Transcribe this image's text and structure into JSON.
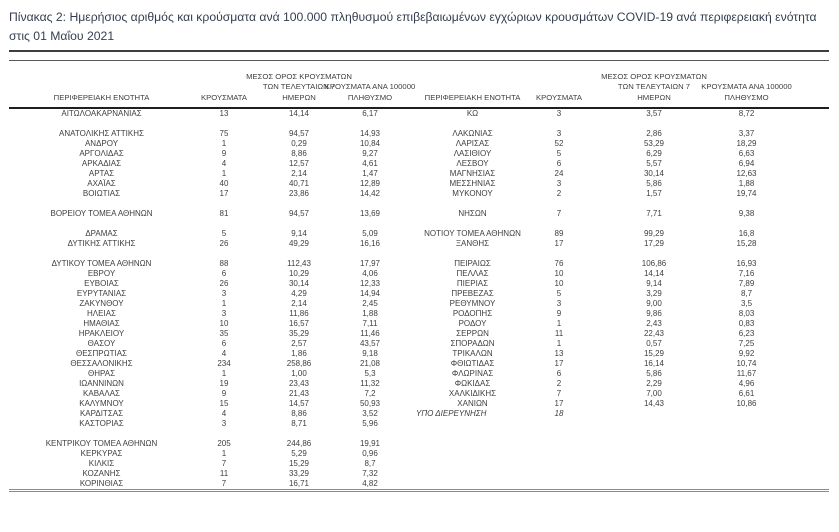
{
  "title": "Πίνακας 2:  Ημερήσιος αριθμός και κρούσματα ανά 100.000 πληθυσμού επιβεβαιωμένων εγχώριων κρουσμάτων COVID-19 ανά περιφερειακή ενότητα στις 01 Μαΐου 2021",
  "colors": {
    "title_text": "#333f50",
    "table_text": "#3f3f3f",
    "header_underline": "#1f1f1f",
    "bottom_double_line": "#8c8c8c"
  },
  "headers": {
    "region": "ΠΕΡΙΦΕΡΕΙΑΚΗ ΕΝΟΤΗΤΑ",
    "cases": "ΚΡΟΥΣΜΑΤΑ",
    "avg7": "ΜΕΣΟΣ ΟΡΟΣ ΚΡΟΥΣΜΑΤΩΝ\nΤΩΝ ΤΕΛΕΥΤΑΙΩΝ 7\nΗΜΕΡΩΝ",
    "per100k": "ΚΡΟΥΣΜΑΤΑ ΑΝΑ 100000\nΠΛΗΘΥΣΜΟ"
  },
  "table": {
    "rows": [
      {
        "l": [
          "ΑΙΤΩΛΟΑΚΑΡΝΑΝΙΑΣ",
          "13",
          "14,14",
          "6,17"
        ],
        "r": [
          "ΚΩ",
          "3",
          "3,57",
          "8,72"
        ]
      },
      {
        "blank": true
      },
      {
        "l": [
          "ΑΝΑΤΟΛΙΚΗΣ ΑΤΤΙΚΗΣ",
          "75",
          "94,57",
          "14,93"
        ],
        "r": [
          "ΛΑΚΩΝΙΑΣ",
          "3",
          "2,86",
          "3,37"
        ]
      },
      {
        "l": [
          "ΑΝΔΡΟΥ",
          "1",
          "0,29",
          "10,84"
        ],
        "r": [
          "ΛΑΡΙΣΑΣ",
          "52",
          "53,29",
          "18,29"
        ]
      },
      {
        "l": [
          "ΑΡΓΟΛΙΔΑΣ",
          "9",
          "8,86",
          "9,27"
        ],
        "r": [
          "ΛΑΣΙΘΙΟΥ",
          "5",
          "6,29",
          "6,63"
        ]
      },
      {
        "l": [
          "ΑΡΚΑΔΙΑΣ",
          "4",
          "12,57",
          "4,61"
        ],
        "r": [
          "ΛΕΣΒΟΥ",
          "6",
          "5,57",
          "6,94"
        ]
      },
      {
        "l": [
          "ΑΡΤΑΣ",
          "1",
          "2,14",
          "1,47"
        ],
        "r": [
          "ΜΑΓΝΗΣΙΑΣ",
          "24",
          "30,14",
          "12,63"
        ]
      },
      {
        "l": [
          "ΑΧΑΪΑΣ",
          "40",
          "40,71",
          "12,89"
        ],
        "r": [
          "ΜΕΣΣΗΝΙΑΣ",
          "3",
          "5,86",
          "1,88"
        ]
      },
      {
        "l": [
          "ΒΟΙΩΤΙΑΣ",
          "17",
          "23,86",
          "14,42"
        ],
        "r": [
          "ΜΥΚΟΝΟΥ",
          "2",
          "1,57",
          "19,74"
        ]
      },
      {
        "blank": true
      },
      {
        "l": [
          "ΒΟΡΕΙΟΥ ΤΟΜΕΑ ΑΘΗΝΩΝ",
          "81",
          "94,57",
          "13,69"
        ],
        "r": [
          "ΝΗΣΩΝ",
          "7",
          "7,71",
          "9,38"
        ]
      },
      {
        "blank": true
      },
      {
        "l": [
          "ΔΡΑΜΑΣ",
          "5",
          "9,14",
          "5,09"
        ],
        "r": [
          "ΝΟΤΙΟΥ ΤΟΜΕΑ ΑΘΗΝΩΝ",
          "89",
          "99,29",
          "16,8"
        ]
      },
      {
        "l": [
          "ΔΥΤΙΚΗΣ ΑΤΤΙΚΗΣ",
          "26",
          "49,29",
          "16,16"
        ],
        "r": [
          "ΞΑΝΘΗΣ",
          "17",
          "17,29",
          "15,28"
        ]
      },
      {
        "blank": true
      },
      {
        "l": [
          "ΔΥΤΙΚΟΥ ΤΟΜΕΑ ΑΘΗΝΩΝ",
          "88",
          "112,43",
          "17,97"
        ],
        "r": [
          "ΠΕΙΡΑΙΩΣ",
          "76",
          "106,86",
          "16,93"
        ]
      },
      {
        "l": [
          "ΕΒΡΟΥ",
          "6",
          "10,29",
          "4,06"
        ],
        "r": [
          "ΠΕΛΛΑΣ",
          "10",
          "14,14",
          "7,16"
        ]
      },
      {
        "l": [
          "ΕΥΒΟΙΑΣ",
          "26",
          "30,14",
          "12,33"
        ],
        "r": [
          "ΠΙΕΡΙΑΣ",
          "10",
          "9,14",
          "7,89"
        ]
      },
      {
        "l": [
          "ΕΥΡΥΤΑΝΙΑΣ",
          "3",
          "4,29",
          "14,94"
        ],
        "r": [
          "ΠΡΕΒΕΖΑΣ",
          "5",
          "3,29",
          "8,7"
        ]
      },
      {
        "l": [
          "ΖΑΚΥΝΘΟΥ",
          "1",
          "2,14",
          "2,45"
        ],
        "r": [
          "ΡΕΘΥΜΝΟΥ",
          "3",
          "9,00",
          "3,5"
        ]
      },
      {
        "l": [
          "ΗΛΕΙΑΣ",
          "3",
          "11,86",
          "1,88"
        ],
        "r": [
          "ΡΟΔΟΠΗΣ",
          "9",
          "9,86",
          "8,03"
        ]
      },
      {
        "l": [
          "ΗΜΑΘΙΑΣ",
          "10",
          "16,57",
          "7,11"
        ],
        "r": [
          "ΡΟΔΟΥ",
          "1",
          "2,43",
          "0,83"
        ]
      },
      {
        "l": [
          "ΗΡΑΚΛΕΙΟΥ",
          "35",
          "35,29",
          "11,46"
        ],
        "r": [
          "ΣΕΡΡΩΝ",
          "11",
          "22,43",
          "6,23"
        ]
      },
      {
        "l": [
          "ΘΑΣΟΥ",
          "6",
          "2,57",
          "43,57"
        ],
        "r": [
          "ΣΠΟΡΑΔΩΝ",
          "1",
          "0,57",
          "7,25"
        ]
      },
      {
        "l": [
          "ΘΕΣΠΡΩΤΙΑΣ",
          "4",
          "1,86",
          "9,18"
        ],
        "r": [
          "ΤΡΙΚΑΛΩΝ",
          "13",
          "15,29",
          "9,92"
        ]
      },
      {
        "l": [
          "ΘΕΣΣΑΛΟΝΙΚΗΣ",
          "234",
          "258,86",
          "21,08"
        ],
        "r": [
          "ΦΘΙΩΤΙΔΑΣ",
          "17",
          "16,14",
          "10,74"
        ]
      },
      {
        "l": [
          "ΘΗΡΑΣ",
          "1",
          "1,00",
          "5,3"
        ],
        "r": [
          "ΦΛΩΡΙΝΑΣ",
          "6",
          "5,86",
          "11,67"
        ]
      },
      {
        "l": [
          "ΙΩΑΝΝΙΝΩΝ",
          "19",
          "23,43",
          "11,32"
        ],
        "r": [
          "ΦΩΚΙΔΑΣ",
          "2",
          "2,29",
          "4,96"
        ]
      },
      {
        "l": [
          "ΚΑΒΑΛΑΣ",
          "9",
          "21,43",
          "7,2"
        ],
        "r": [
          "ΧΑΛΚΙΔΙΚΗΣ",
          "7",
          "7,00",
          "6,61"
        ]
      },
      {
        "l": [
          "ΚΑΛΥΜΝΟΥ",
          "15",
          "14,57",
          "50,93"
        ],
        "r": [
          "ΧΑΝΙΩΝ",
          "17",
          "14,43",
          "10,86"
        ]
      },
      {
        "l": [
          "ΚΑΡΔΙΤΣΑΣ",
          "4",
          "8,86",
          "3,52"
        ],
        "r": [
          "ΥΠΟ ΔΙΕΡΕΥΝΗΣΗ",
          "18",
          "",
          ""
        ],
        "r_note": true
      },
      {
        "l": [
          "ΚΑΣΤΟΡΙΑΣ",
          "3",
          "8,71",
          "5,96"
        ],
        "r": null
      },
      {
        "blank": true
      },
      {
        "l": [
          "ΚΕΝΤΡΙΚΟΥ ΤΟΜΕΑ ΑΘΗΝΩΝ",
          "205",
          "244,86",
          "19,91"
        ],
        "r": null
      },
      {
        "l": [
          "ΚΕΡΚΥΡΑΣ",
          "1",
          "5,29",
          "0,96"
        ],
        "r": null
      },
      {
        "l": [
          "ΚΙΛΚΙΣ",
          "7",
          "15,29",
          "8,7"
        ],
        "r": null
      },
      {
        "l": [
          "ΚΟΖΑΝΗΣ",
          "11",
          "33,29",
          "7,32"
        ],
        "r": null
      },
      {
        "l": [
          "ΚΟΡΙΝΘΙΑΣ",
          "7",
          "16,71",
          "4,82"
        ],
        "r": null
      }
    ]
  }
}
